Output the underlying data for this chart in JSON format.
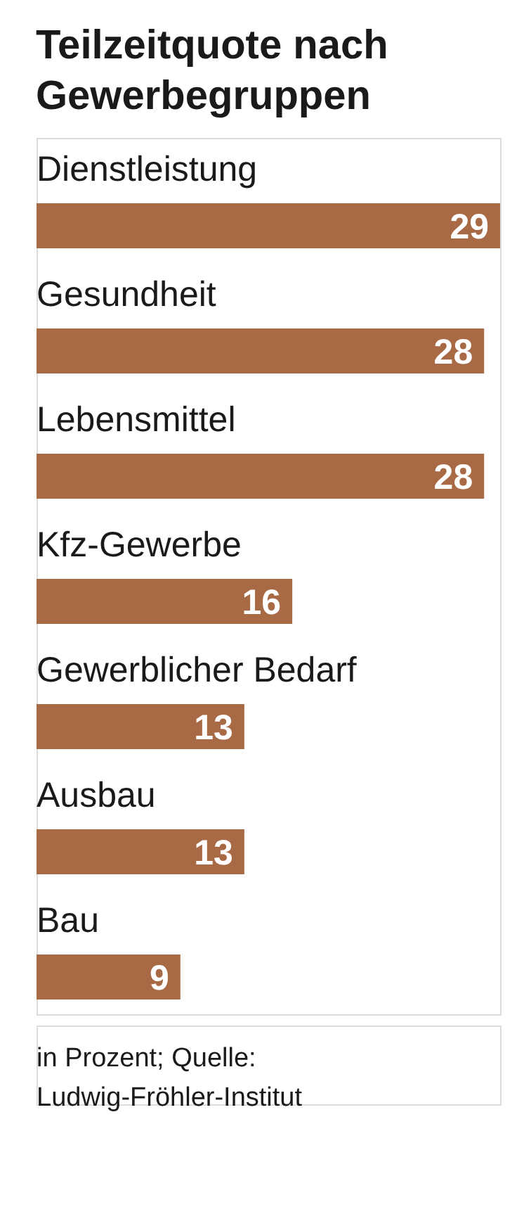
{
  "chart_data": {
    "type": "bar",
    "orientation": "horizontal",
    "title": "Teilzeitquote nach Gewerbegruppen",
    "categories": [
      "Dienstleistung",
      "Gesundheit",
      "Lebensmittel",
      "Kfz-Gewerbe",
      "Gewerblicher Bedarf",
      "Ausbau",
      "Bau"
    ],
    "values": [
      29,
      28,
      28,
      16,
      13,
      13,
      9
    ],
    "color": "#a86a45",
    "data_labels": true,
    "annotations": [
      "in Prozent; Quelle: Ludwig-Fröhler-Institut"
    ]
  }
}
